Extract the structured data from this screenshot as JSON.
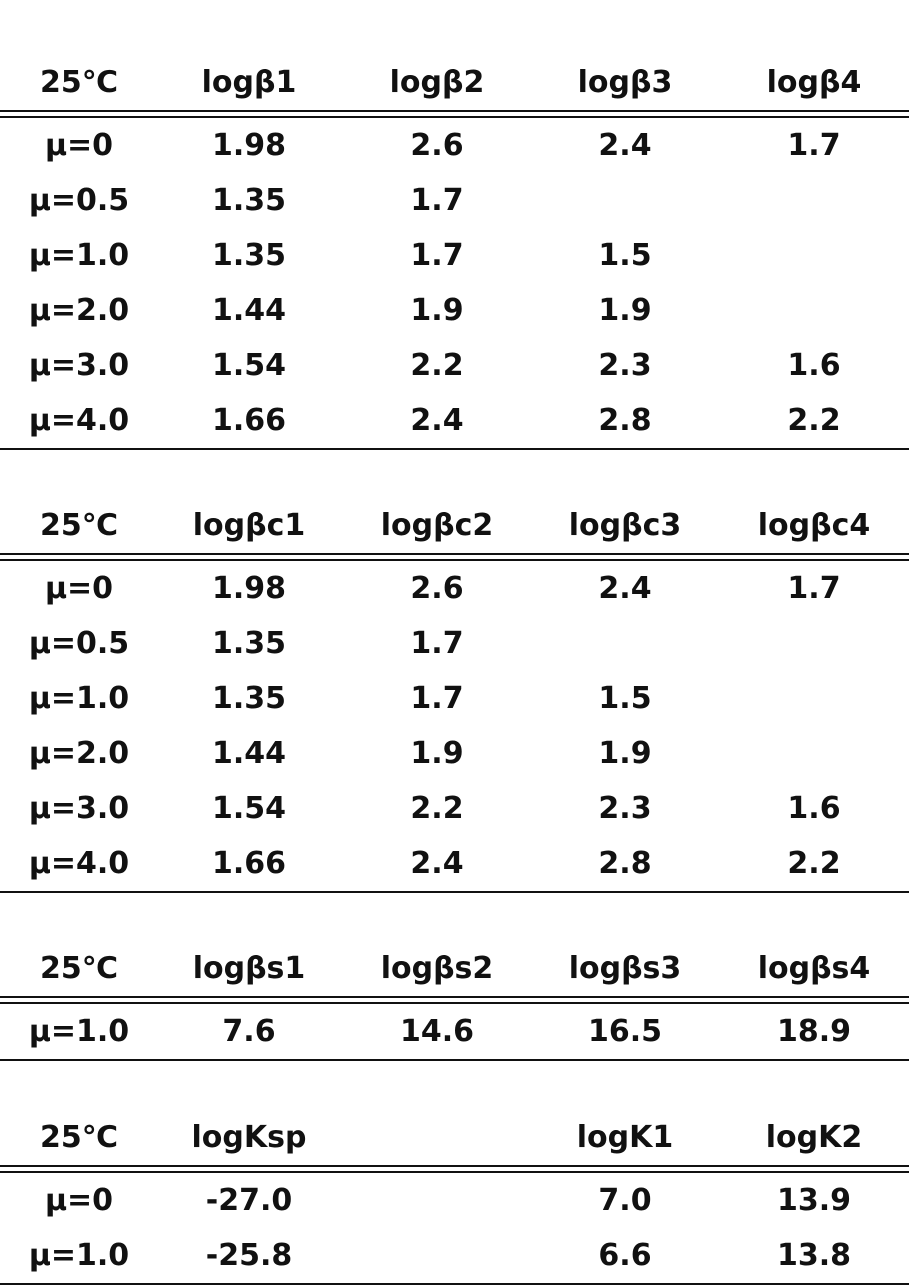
{
  "tables": [
    {
      "header": [
        "25℃",
        "logβ1",
        "logβ2",
        "logβ3",
        "logβ4"
      ],
      "rows": [
        [
          "μ=0",
          "1.98",
          "2.6",
          "2.4",
          "1.7"
        ],
        [
          "μ=0.5",
          "1.35",
          "1.7",
          "",
          ""
        ],
        [
          "μ=1.0",
          "1.35",
          "1.7",
          "1.5",
          ""
        ],
        [
          "μ=2.0",
          "1.44",
          "1.9",
          "1.9",
          ""
        ],
        [
          "μ=3.0",
          "1.54",
          "2.2",
          "2.3",
          "1.6"
        ],
        [
          "μ=4.0",
          "1.66",
          "2.4",
          "2.8",
          "2.2"
        ]
      ]
    },
    {
      "header": [
        "25℃",
        "logβc1",
        "logβc2",
        "logβc3",
        "logβc4"
      ],
      "rows": [
        [
          "μ=0",
          "1.98",
          "2.6",
          "2.4",
          "1.7"
        ],
        [
          "μ=0.5",
          "1.35",
          "1.7",
          "",
          ""
        ],
        [
          "μ=1.0",
          "1.35",
          "1.7",
          "1.5",
          ""
        ],
        [
          "μ=2.0",
          "1.44",
          "1.9",
          "1.9",
          ""
        ],
        [
          "μ=3.0",
          "1.54",
          "2.2",
          "2.3",
          "1.6"
        ],
        [
          "μ=4.0",
          "1.66",
          "2.4",
          "2.8",
          "2.2"
        ]
      ]
    },
    {
      "header": [
        "25℃",
        "logβs1",
        "logβs2",
        "logβs3",
        "logβs4"
      ],
      "rows": [
        [
          "μ=1.0",
          "7.6",
          "14.6",
          "16.5",
          "18.9"
        ]
      ]
    },
    {
      "header": [
        "25℃",
        "logKsp",
        "",
        "logK1",
        "logK2"
      ],
      "rows": [
        [
          "μ=0",
          "-27.0",
          "",
          "7.0",
          "13.9"
        ],
        [
          "μ=1.0",
          "-25.8",
          "",
          "6.6",
          "13.8"
        ]
      ]
    }
  ]
}
